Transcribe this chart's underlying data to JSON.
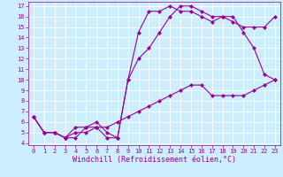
{
  "line1_x": [
    0,
    1,
    2,
    3,
    4,
    5,
    6,
    7,
    8,
    9,
    10,
    11,
    12,
    13,
    14,
    15,
    16,
    17,
    18,
    19,
    20,
    21,
    22,
    23
  ],
  "line1_y": [
    6.5,
    5.0,
    5.0,
    4.5,
    4.5,
    5.5,
    5.5,
    4.5,
    4.5,
    10.0,
    14.5,
    16.5,
    16.5,
    17.0,
    16.5,
    16.5,
    16.0,
    15.5,
    16.0,
    16.0,
    14.5,
    13.0,
    10.5,
    10.0
  ],
  "line2_x": [
    0,
    1,
    2,
    3,
    4,
    5,
    6,
    7,
    8,
    9,
    10,
    11,
    12,
    13,
    14,
    15,
    16,
    17,
    18,
    19,
    20,
    21,
    22,
    23
  ],
  "line2_y": [
    6.5,
    5.0,
    5.0,
    4.5,
    5.5,
    5.5,
    6.0,
    5.0,
    4.5,
    10.0,
    12.0,
    13.0,
    14.5,
    16.0,
    17.0,
    17.0,
    16.5,
    16.0,
    16.0,
    15.5,
    15.0,
    15.0,
    15.0,
    16.0
  ],
  "line3_x": [
    0,
    1,
    2,
    3,
    4,
    5,
    6,
    7,
    8,
    9,
    10,
    11,
    12,
    13,
    14,
    15,
    16,
    17,
    18,
    19,
    20,
    21,
    22,
    23
  ],
  "line3_y": [
    6.5,
    5.0,
    5.0,
    4.5,
    5.0,
    5.0,
    5.5,
    5.5,
    6.0,
    6.5,
    7.0,
    7.5,
    8.0,
    8.5,
    9.0,
    9.5,
    9.5,
    8.5,
    8.5,
    8.5,
    8.5,
    9.0,
    9.5,
    10.0
  ],
  "line_color": "#990099",
  "bg_color": "#cceeff",
  "grid_color": "#ffffff",
  "xlabel": "Windchill (Refroidissement éolien,°C)",
  "xlim_min": -0.5,
  "xlim_max": 23.5,
  "ylim_min": 3.8,
  "ylim_max": 17.4,
  "xticks": [
    0,
    1,
    2,
    3,
    4,
    5,
    6,
    7,
    8,
    9,
    10,
    11,
    12,
    13,
    14,
    15,
    16,
    17,
    18,
    19,
    20,
    21,
    22,
    23
  ],
  "yticks": [
    4,
    5,
    6,
    7,
    8,
    9,
    10,
    11,
    12,
    13,
    14,
    15,
    16,
    17
  ],
  "tick_fontsize": 5.0,
  "xlabel_fontsize": 6.0,
  "markersize": 2.2,
  "linewidth": 0.8
}
